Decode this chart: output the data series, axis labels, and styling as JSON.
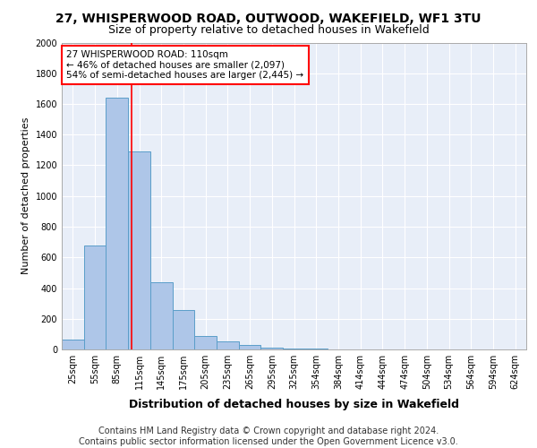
{
  "title1": "27, WHISPERWOOD ROAD, OUTWOOD, WAKEFIELD, WF1 3TU",
  "title2": "Size of property relative to detached houses in Wakefield",
  "xlabel": "Distribution of detached houses by size in Wakefield",
  "ylabel": "Number of detached properties",
  "categories": [
    "25sqm",
    "55sqm",
    "85sqm",
    "115sqm",
    "145sqm",
    "175sqm",
    "205sqm",
    "235sqm",
    "265sqm",
    "295sqm",
    "325sqm",
    "354sqm",
    "384sqm",
    "414sqm",
    "444sqm",
    "474sqm",
    "504sqm",
    "534sqm",
    "564sqm",
    "594sqm",
    "624sqm"
  ],
  "values": [
    62,
    680,
    1640,
    1290,
    440,
    255,
    90,
    50,
    30,
    10,
    5,
    3,
    2,
    2,
    2,
    2,
    1,
    1,
    1,
    1,
    1
  ],
  "bar_color": "#AEC6E8",
  "bar_edge_color": "#5A9EC9",
  "vline_color": "red",
  "vline_pos": 2.667,
  "annotation_text": "27 WHISPERWOOD ROAD: 110sqm\n← 46% of detached houses are smaller (2,097)\n54% of semi-detached houses are larger (2,445) →",
  "annotation_box_color": "white",
  "annotation_box_edge": "red",
  "ylim": [
    0,
    2000
  ],
  "yticks": [
    0,
    200,
    400,
    600,
    800,
    1000,
    1200,
    1400,
    1600,
    1800,
    2000
  ],
  "footer_text": "Contains HM Land Registry data © Crown copyright and database right 2024.\nContains public sector information licensed under the Open Government Licence v3.0.",
  "bg_color": "#E8EEF8",
  "grid_color": "#FFFFFF",
  "title1_fontsize": 10,
  "title2_fontsize": 9,
  "xlabel_fontsize": 9,
  "ylabel_fontsize": 8,
  "tick_fontsize": 7,
  "footer_fontsize": 7,
  "annot_fontsize": 7.5
}
